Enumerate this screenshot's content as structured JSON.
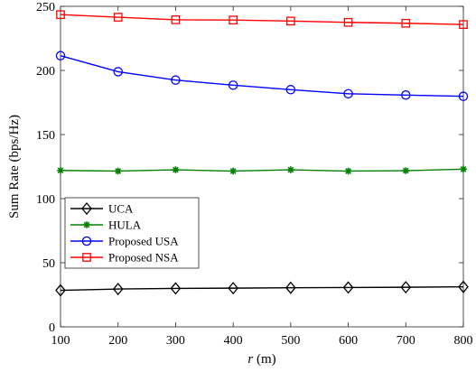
{
  "chart_data": {
    "type": "line",
    "xlabel": "r (m)",
    "xlabel_var": "r",
    "xlabel_unit": " (m)",
    "ylabel": "Sum Rate (bps/Hz)",
    "xlim": [
      100,
      800
    ],
    "ylim": [
      0,
      250
    ],
    "xticks": [
      100,
      200,
      300,
      400,
      500,
      600,
      700,
      800
    ],
    "yticks": [
      0,
      50,
      100,
      150,
      200,
      250
    ],
    "x": [
      100,
      200,
      300,
      400,
      500,
      600,
      700,
      800
    ],
    "grid": false,
    "legend_position": "center-left",
    "series": [
      {
        "name": "UCA",
        "color": "#000000",
        "marker": "diamond",
        "values": [
          28.5,
          29.5,
          30.0,
          30.2,
          30.5,
          30.7,
          30.9,
          31.2
        ]
      },
      {
        "name": "HULA",
        "color": "#008000",
        "marker": "star",
        "values": [
          122.0,
          121.5,
          122.5,
          121.5,
          122.5,
          121.5,
          121.8,
          123.0
        ]
      },
      {
        "name": "Proposed USA",
        "color": "#0000ff",
        "marker": "circle",
        "values": [
          211.5,
          199.0,
          192.5,
          188.5,
          185.0,
          181.8,
          180.8,
          179.8
        ]
      },
      {
        "name": "Proposed NSA",
        "color": "#ff0000",
        "marker": "square",
        "values": [
          243.5,
          241.5,
          239.5,
          239.3,
          238.5,
          237.5,
          236.8,
          235.8
        ]
      }
    ]
  }
}
